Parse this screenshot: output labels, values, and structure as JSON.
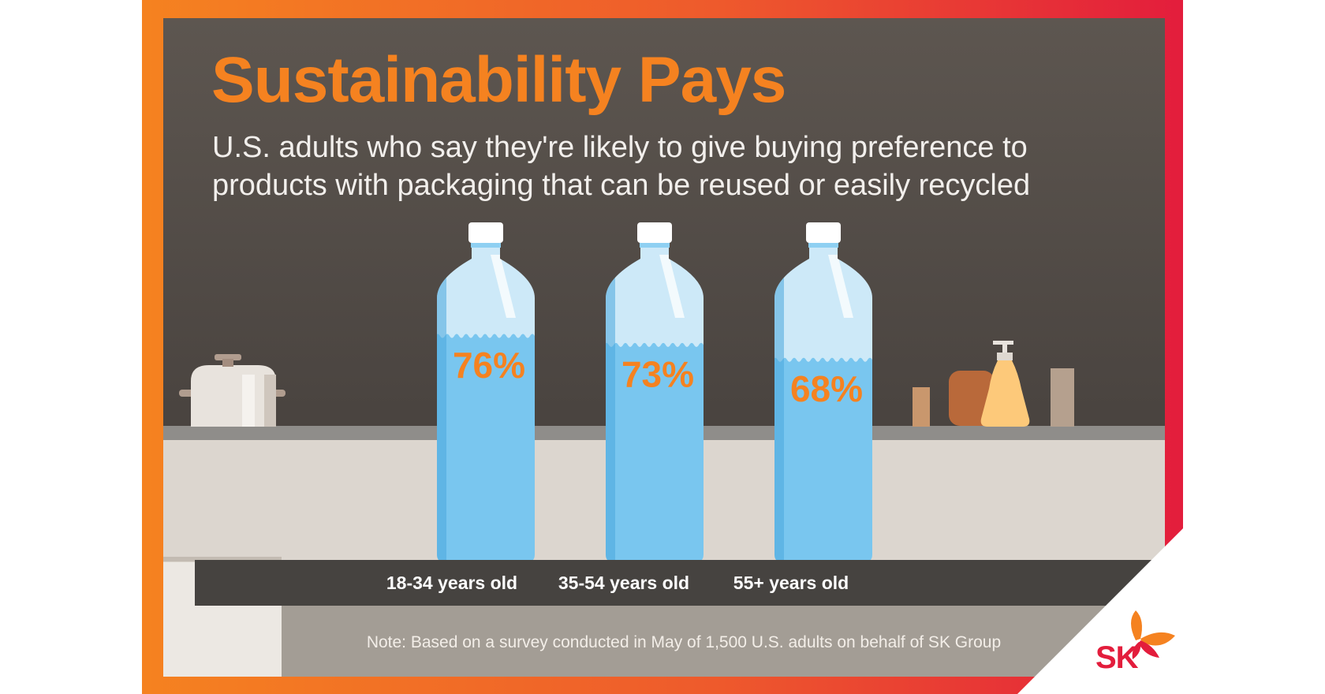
{
  "infographic": {
    "title": "Sustainability Pays",
    "subtitle": "U.S. adults who say they're likely to give buying preference to products with packaging that can be reused or easily recycled",
    "note": "Note: Based on a survey conducted in May of 1,500 U.S. adults on behalf of SK Group",
    "brand": "SK"
  },
  "colors": {
    "accent": "#f58220",
    "brand_red": "#e31d3c",
    "water": "#79c6ef",
    "bottle_air": "#cde9f8",
    "cap": "#ffffff"
  },
  "chart_data": {
    "type": "bar",
    "categories": [
      "18-34 years old",
      "35-54 years old",
      "55+ years old"
    ],
    "values": [
      76,
      73,
      68
    ],
    "value_labels": [
      "76%",
      "73%",
      "68%"
    ],
    "ylim": [
      0,
      100
    ],
    "unit": "%"
  }
}
